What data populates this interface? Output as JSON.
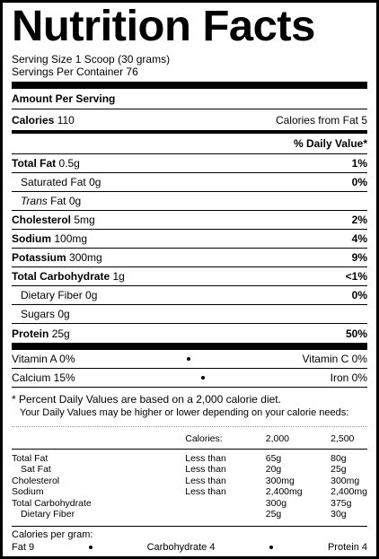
{
  "title": "Nutrition Facts",
  "serving_size": "Serving Size 1 Scoop (30 grams)",
  "servings_per_container": "Servings Per Container 76",
  "amount_per_serving": "Amount Per Serving",
  "calories": {
    "label": "Calories",
    "value": "110",
    "from_fat_label": "Calories from Fat",
    "from_fat_value": "5"
  },
  "daily_value_header": "% Daily Value*",
  "nutrients": [
    {
      "label": "Total Fat",
      "amount": "0.5g",
      "dv": "1%"
    },
    {
      "label": "Saturated Fat",
      "amount": "0g",
      "dv": "0%"
    },
    {
      "label": "Trans",
      "label_rest": "Fat 0g",
      "dv": ""
    },
    {
      "label": "Cholesterol",
      "amount": "5mg",
      "dv": "2%"
    },
    {
      "label": "Sodium",
      "amount": "100mg",
      "dv": "4%"
    },
    {
      "label": "Potassium",
      "amount": "300mg",
      "dv": "9%"
    },
    {
      "label": "Total Carbohydrate",
      "amount": "1g",
      "dv": "<1%"
    },
    {
      "label": "Dietary Fiber",
      "amount": "0g",
      "dv": "0%"
    },
    {
      "label": "Sugars",
      "amount": "0g",
      "dv": ""
    },
    {
      "label": "Protein",
      "amount": "25g",
      "dv": "50%"
    }
  ],
  "vitamins": [
    {
      "left": "Vitamin A 0%",
      "right": "Vitamin C 0%"
    },
    {
      "left": "Calcium 15%",
      "right": "Iron 0%"
    }
  ],
  "footnote_1": "* Percent Daily Values are based on a 2,000 calorie diet.",
  "footnote_2": "Your Daily Values may be higher or lower depending on your calorie needs:",
  "dv_table": {
    "header": [
      "",
      "Calories:",
      "2,000",
      "2,500"
    ],
    "rows": [
      [
        "Total Fat",
        "Less than",
        "65g",
        "80g"
      ],
      [
        "Sat Fat",
        "Less than",
        "20g",
        "25g"
      ],
      [
        "Cholesterol",
        "Less than",
        "300mg",
        "300mg"
      ],
      [
        "Sodium",
        "Less than",
        "2,400mg",
        "2,400mg"
      ],
      [
        "Total Carbohydrate",
        "",
        "300g",
        "375g"
      ],
      [
        "Dietary Fiber",
        "",
        "25g",
        "30g"
      ]
    ]
  },
  "calories_per_gram": {
    "label": "Calories per gram:",
    "fat": "Fat 9",
    "carbohydrate": "Carbohydrate 4",
    "protein": "Protein 4"
  }
}
